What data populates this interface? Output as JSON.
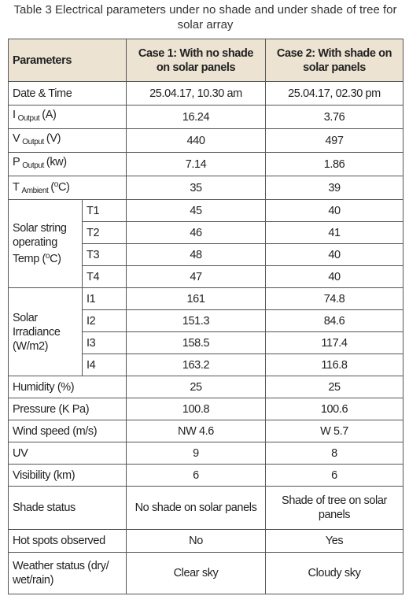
{
  "caption": "Table 3 Electrical parameters under no shade and under shade of tree for solar array",
  "table": {
    "header": [
      "Parameters",
      "Case 1: With no shade on solar panels",
      "Case 2: With shade on solar panels"
    ],
    "rows": [
      {
        "parameter": "Date & Time",
        "values": [
          "25.04.17, 10.30 am",
          "25.04.17, 02.30 pm"
        ]
      },
      {
        "parameter": [
          {
            "text": "I"
          },
          {
            "sub": "Output"
          },
          {
            "text": "(A)"
          }
        ],
        "values": [
          16.24,
          3.76
        ]
      },
      {
        "parameter": [
          {
            "text": "V"
          },
          {
            "sub": "Output"
          },
          {
            "text": "(V)"
          }
        ],
        "values": [
          440,
          497
        ]
      },
      {
        "parameter": [
          {
            "text": "P"
          },
          {
            "sub": "Output"
          },
          {
            "text": "(kw)"
          }
        ],
        "values": [
          7.14,
          1.86
        ]
      },
      {
        "parameter": [
          {
            "text": "T"
          },
          {
            "sub": "Ambient"
          },
          {
            "text": "("
          },
          {
            "sup": "o"
          },
          {
            "text": "C)"
          }
        ],
        "values": [
          35,
          39
        ]
      },
      {
        "parameter": [
          {
            "text": "Solar string operating Temp ("
          },
          {
            "sup": "o"
          },
          {
            "text": "C)"
          }
        ],
        "items": [
          [
            "T1",
            45,
            40
          ],
          [
            "T2",
            46,
            41
          ],
          [
            "T3",
            48,
            40
          ],
          [
            "T4",
            47,
            40
          ]
        ]
      },
      {
        "parameter": "Solar Irradiance (W/m2)",
        "items": [
          [
            "I1",
            161,
            74.8
          ],
          [
            "I2",
            151.3,
            84.6
          ],
          [
            "I3",
            158.5,
            117.4
          ],
          [
            "I4",
            163.2,
            116.8
          ]
        ]
      },
      {
        "parameter": "Humidity (%)",
        "values": [
          25,
          25
        ]
      },
      {
        "parameter": "Pressure (K Pa)",
        "values": [
          100.8,
          100.6
        ]
      },
      {
        "parameter": "Wind speed (m/s)",
        "values": [
          "NW 4.6",
          "W 5.7"
        ]
      },
      {
        "parameter": "UV",
        "values": [
          9,
          8
        ]
      },
      {
        "parameter": "Visibility (km)",
        "values": [
          6,
          6
        ]
      },
      {
        "parameter": "Shade status",
        "values": [
          "No shade on solar panels",
          "Shade of tree on solar panels"
        ]
      },
      {
        "parameter": "Hot spots observed",
        "values": [
          "No",
          "Yes"
        ]
      },
      {
        "parameter": "Weather status (dry/ wet/rain)",
        "values": [
          "Clear sky",
          "Cloudy sky"
        ]
      }
    ]
  }
}
